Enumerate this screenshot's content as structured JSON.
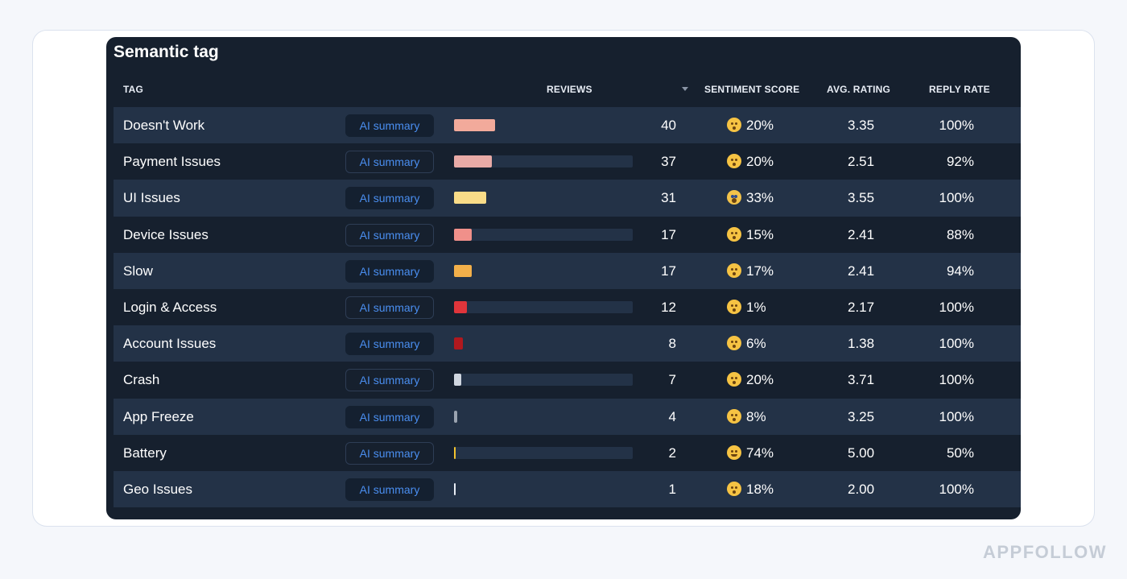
{
  "title": "Semantic tag",
  "columns": {
    "tag": "TAG",
    "reviews": "REVIEWS",
    "sentiment": "SENTIMENT SCORE",
    "rating": "AVG. RATING",
    "reply": "REPLY RATE"
  },
  "ai_button_label": "AI summary",
  "max_reviews": 100,
  "rows": [
    {
      "tag": "Doesn't Work",
      "reviews": "40",
      "bar_fraction": 0.23,
      "bar_color": "#f2aa9b",
      "emoji": "astonished-face",
      "sentiment": "20%",
      "rating": "3.35",
      "reply": "100%"
    },
    {
      "tag": "Payment Issues",
      "reviews": "37",
      "bar_fraction": 0.21,
      "bar_color": "#e8aaa6",
      "emoji": "astonished-face",
      "sentiment": "20%",
      "rating": "2.51",
      "reply": "92%"
    },
    {
      "tag": "UI Issues",
      "reviews": "31",
      "bar_fraction": 0.18,
      "bar_color": "#f9dc88",
      "emoji": "screaming-face",
      "sentiment": "33%",
      "rating": "3.55",
      "reply": "100%"
    },
    {
      "tag": "Device Issues",
      "reviews": "17",
      "bar_fraction": 0.1,
      "bar_color": "#f0908a",
      "emoji": "astonished-face",
      "sentiment": "15%",
      "rating": "2.41",
      "reply": "88%"
    },
    {
      "tag": "Slow",
      "reviews": "17",
      "bar_fraction": 0.1,
      "bar_color": "#f3b04a",
      "emoji": "astonished-face",
      "sentiment": "17%",
      "rating": "2.41",
      "reply": "94%"
    },
    {
      "tag": "Login & Access",
      "reviews": "12",
      "bar_fraction": 0.07,
      "bar_color": "#e0353b",
      "emoji": "astonished-face",
      "sentiment": "1%",
      "rating": "2.17",
      "reply": "100%"
    },
    {
      "tag": "Account Issues",
      "reviews": "8",
      "bar_fraction": 0.05,
      "bar_color": "#b0181e",
      "emoji": "astonished-face",
      "sentiment": "6%",
      "rating": "1.38",
      "reply": "100%"
    },
    {
      "tag": "Crash",
      "reviews": "7",
      "bar_fraction": 0.04,
      "bar_color": "#d0d6e0",
      "emoji": "astonished-face",
      "sentiment": "20%",
      "rating": "3.71",
      "reply": "100%"
    },
    {
      "tag": "App Freeze",
      "reviews": "4",
      "bar_fraction": 0.02,
      "bar_color": "#9aa3b0",
      "emoji": "astonished-face",
      "sentiment": "8%",
      "rating": "3.25",
      "reply": "100%"
    },
    {
      "tag": "Battery",
      "reviews": "2",
      "bar_fraction": 0.01,
      "bar_color": "#f3c32e",
      "emoji": "slightly-smiling-face",
      "sentiment": "74%",
      "rating": "5.00",
      "reply": "50%"
    },
    {
      "tag": "Geo Issues",
      "reviews": "1",
      "bar_fraction": 0.01,
      "bar_color": "#e8edf5",
      "emoji": "astonished-face",
      "sentiment": "18%",
      "rating": "2.00",
      "reply": "100%"
    }
  ],
  "watermark": "APPFOLLOW"
}
